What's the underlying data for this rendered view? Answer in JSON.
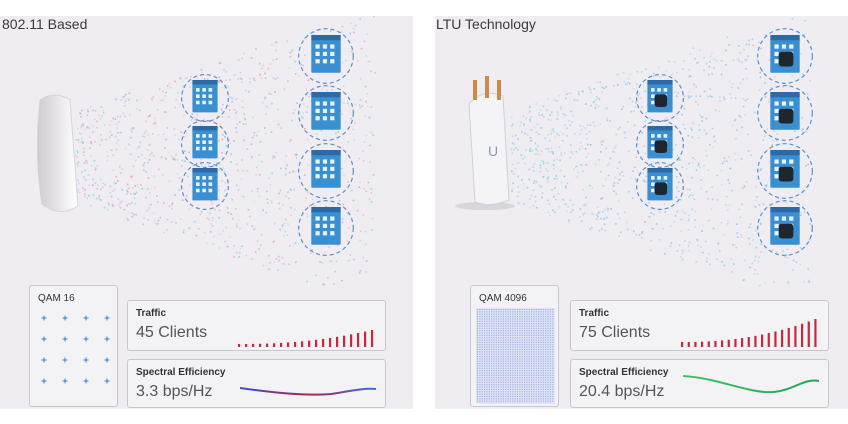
{
  "left": {
    "title": "802.11 Based",
    "qam_label": "QAM 16",
    "traffic_label": "Traffic",
    "traffic_value": "45 Clients",
    "spectral_label": "Spectral Efficiency",
    "spectral_value": "3.3 bps/Hz",
    "accent": "#c8283c"
  },
  "right": {
    "title": "LTU Technology",
    "qam_label": "QAM 4096",
    "traffic_label": "Traffic",
    "traffic_value": "75 Clients",
    "spectral_label": "Spectral Efficiency",
    "spectral_value": "20.4 bps/Hz",
    "accent": "#c8283c"
  }
}
